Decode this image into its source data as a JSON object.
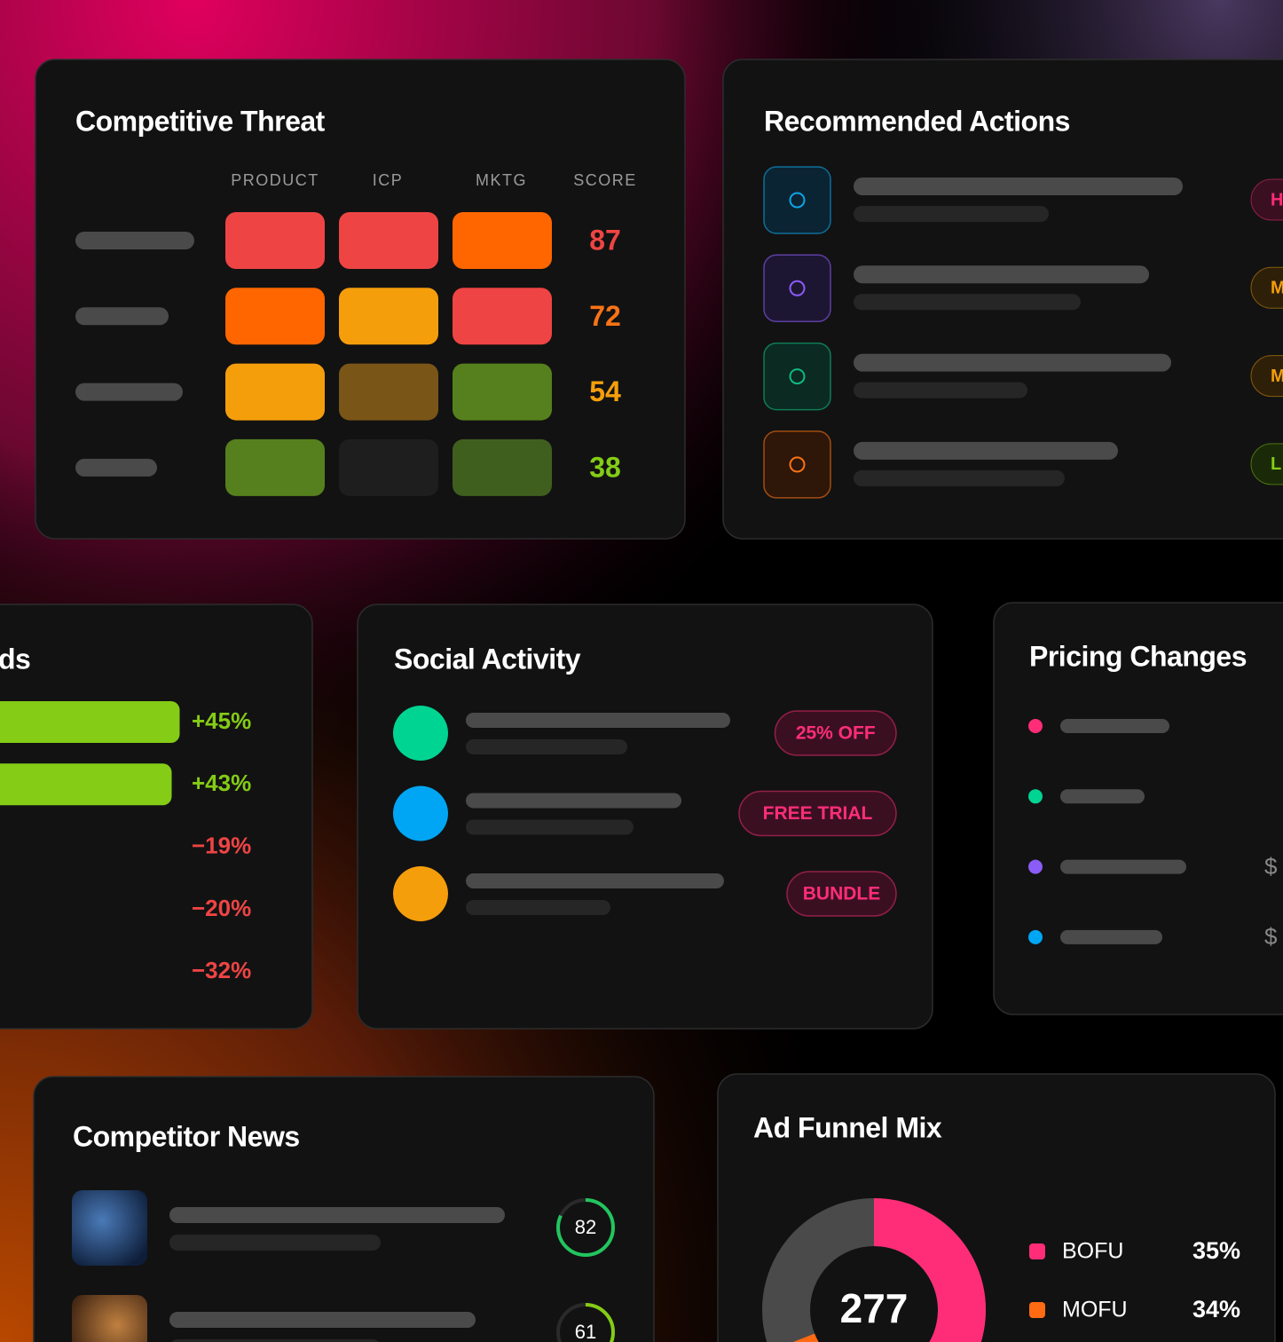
{
  "competitive_threat": {
    "title": "Competitive Threat",
    "columns": [
      "PRODUCT",
      "ICP",
      "MKTG",
      "SCORE"
    ],
    "scores": [
      87,
      72,
      54,
      38
    ]
  },
  "recommended_actions": {
    "title": "Recommended Actions",
    "badges": [
      "H",
      "M",
      "M",
      "L"
    ]
  },
  "trends": {
    "title_fragment": "ds",
    "values": [
      45,
      43,
      -19,
      -20,
      -32
    ],
    "value_labels": [
      "+45%",
      "+43%",
      "−19%",
      "−20%",
      "−32%"
    ]
  },
  "social_activity": {
    "title": "Social Activity",
    "tags": [
      "25% OFF",
      "FREE TRIAL",
      "BUNDLE"
    ]
  },
  "pricing_changes": {
    "title": "Pricing Changes",
    "currency_marks": [
      "$",
      "$"
    ]
  },
  "competitor_news": {
    "title": "Competitor News",
    "scores": [
      82,
      61
    ]
  },
  "ad_funnel_mix": {
    "title": "Ad Funnel Mix",
    "total": 277,
    "segments": [
      {
        "name": "BOFU",
        "color": "#ff2d78",
        "value": 35,
        "label": "35%"
      },
      {
        "name": "MOFU",
        "color": "#ff6a13",
        "value": 34,
        "label": "34%"
      }
    ]
  }
}
